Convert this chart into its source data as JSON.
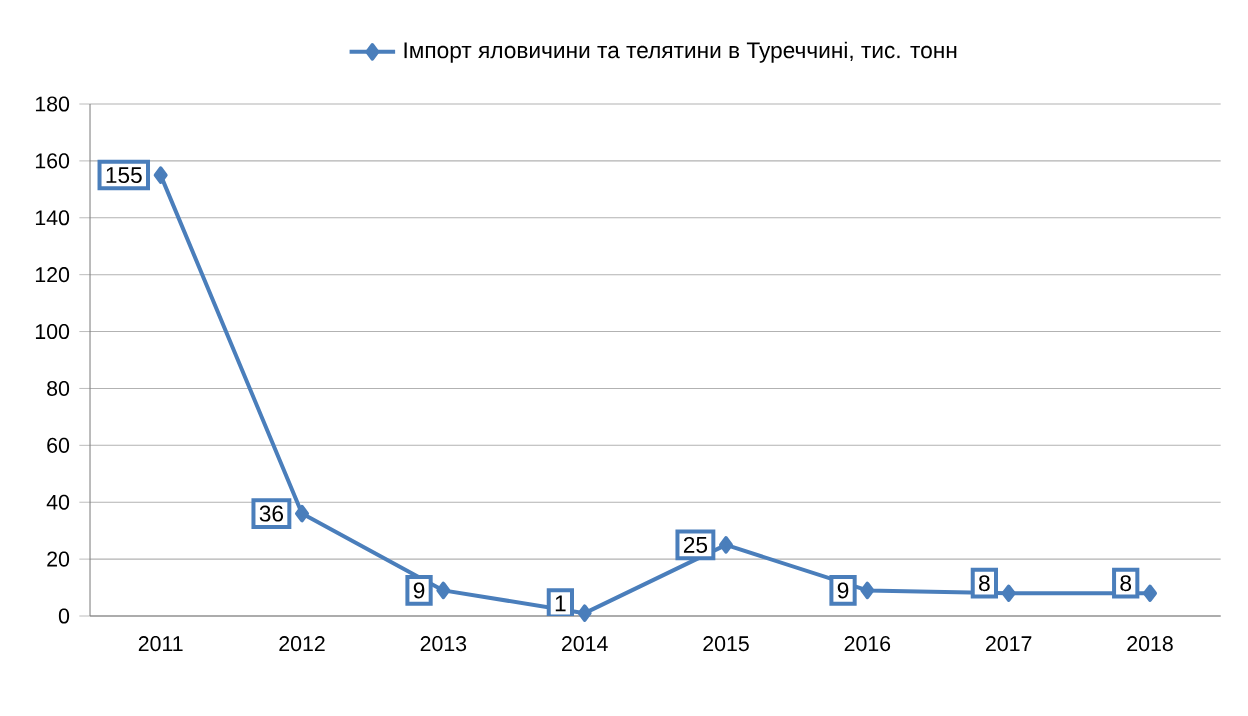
{
  "chart_data": {
    "type": "line",
    "categories": [
      "2011",
      "2012",
      "2013",
      "2014",
      "2015",
      "2016",
      "2017",
      "2018"
    ],
    "series": [
      {
        "name": "Імпорт яловичини та телятини в Туреччині, тис. тонн",
        "color": "#4a7ebb",
        "values": [
          155,
          36,
          9,
          1,
          25,
          9,
          8,
          8
        ]
      }
    ],
    "ylim": [
      0,
      180
    ],
    "yticks": [
      0,
      20,
      40,
      60,
      80,
      100,
      120,
      140,
      160,
      180
    ],
    "grid": "y",
    "legend": "top",
    "marker": "diamond",
    "line_style": "solid",
    "data_labels": true
  }
}
